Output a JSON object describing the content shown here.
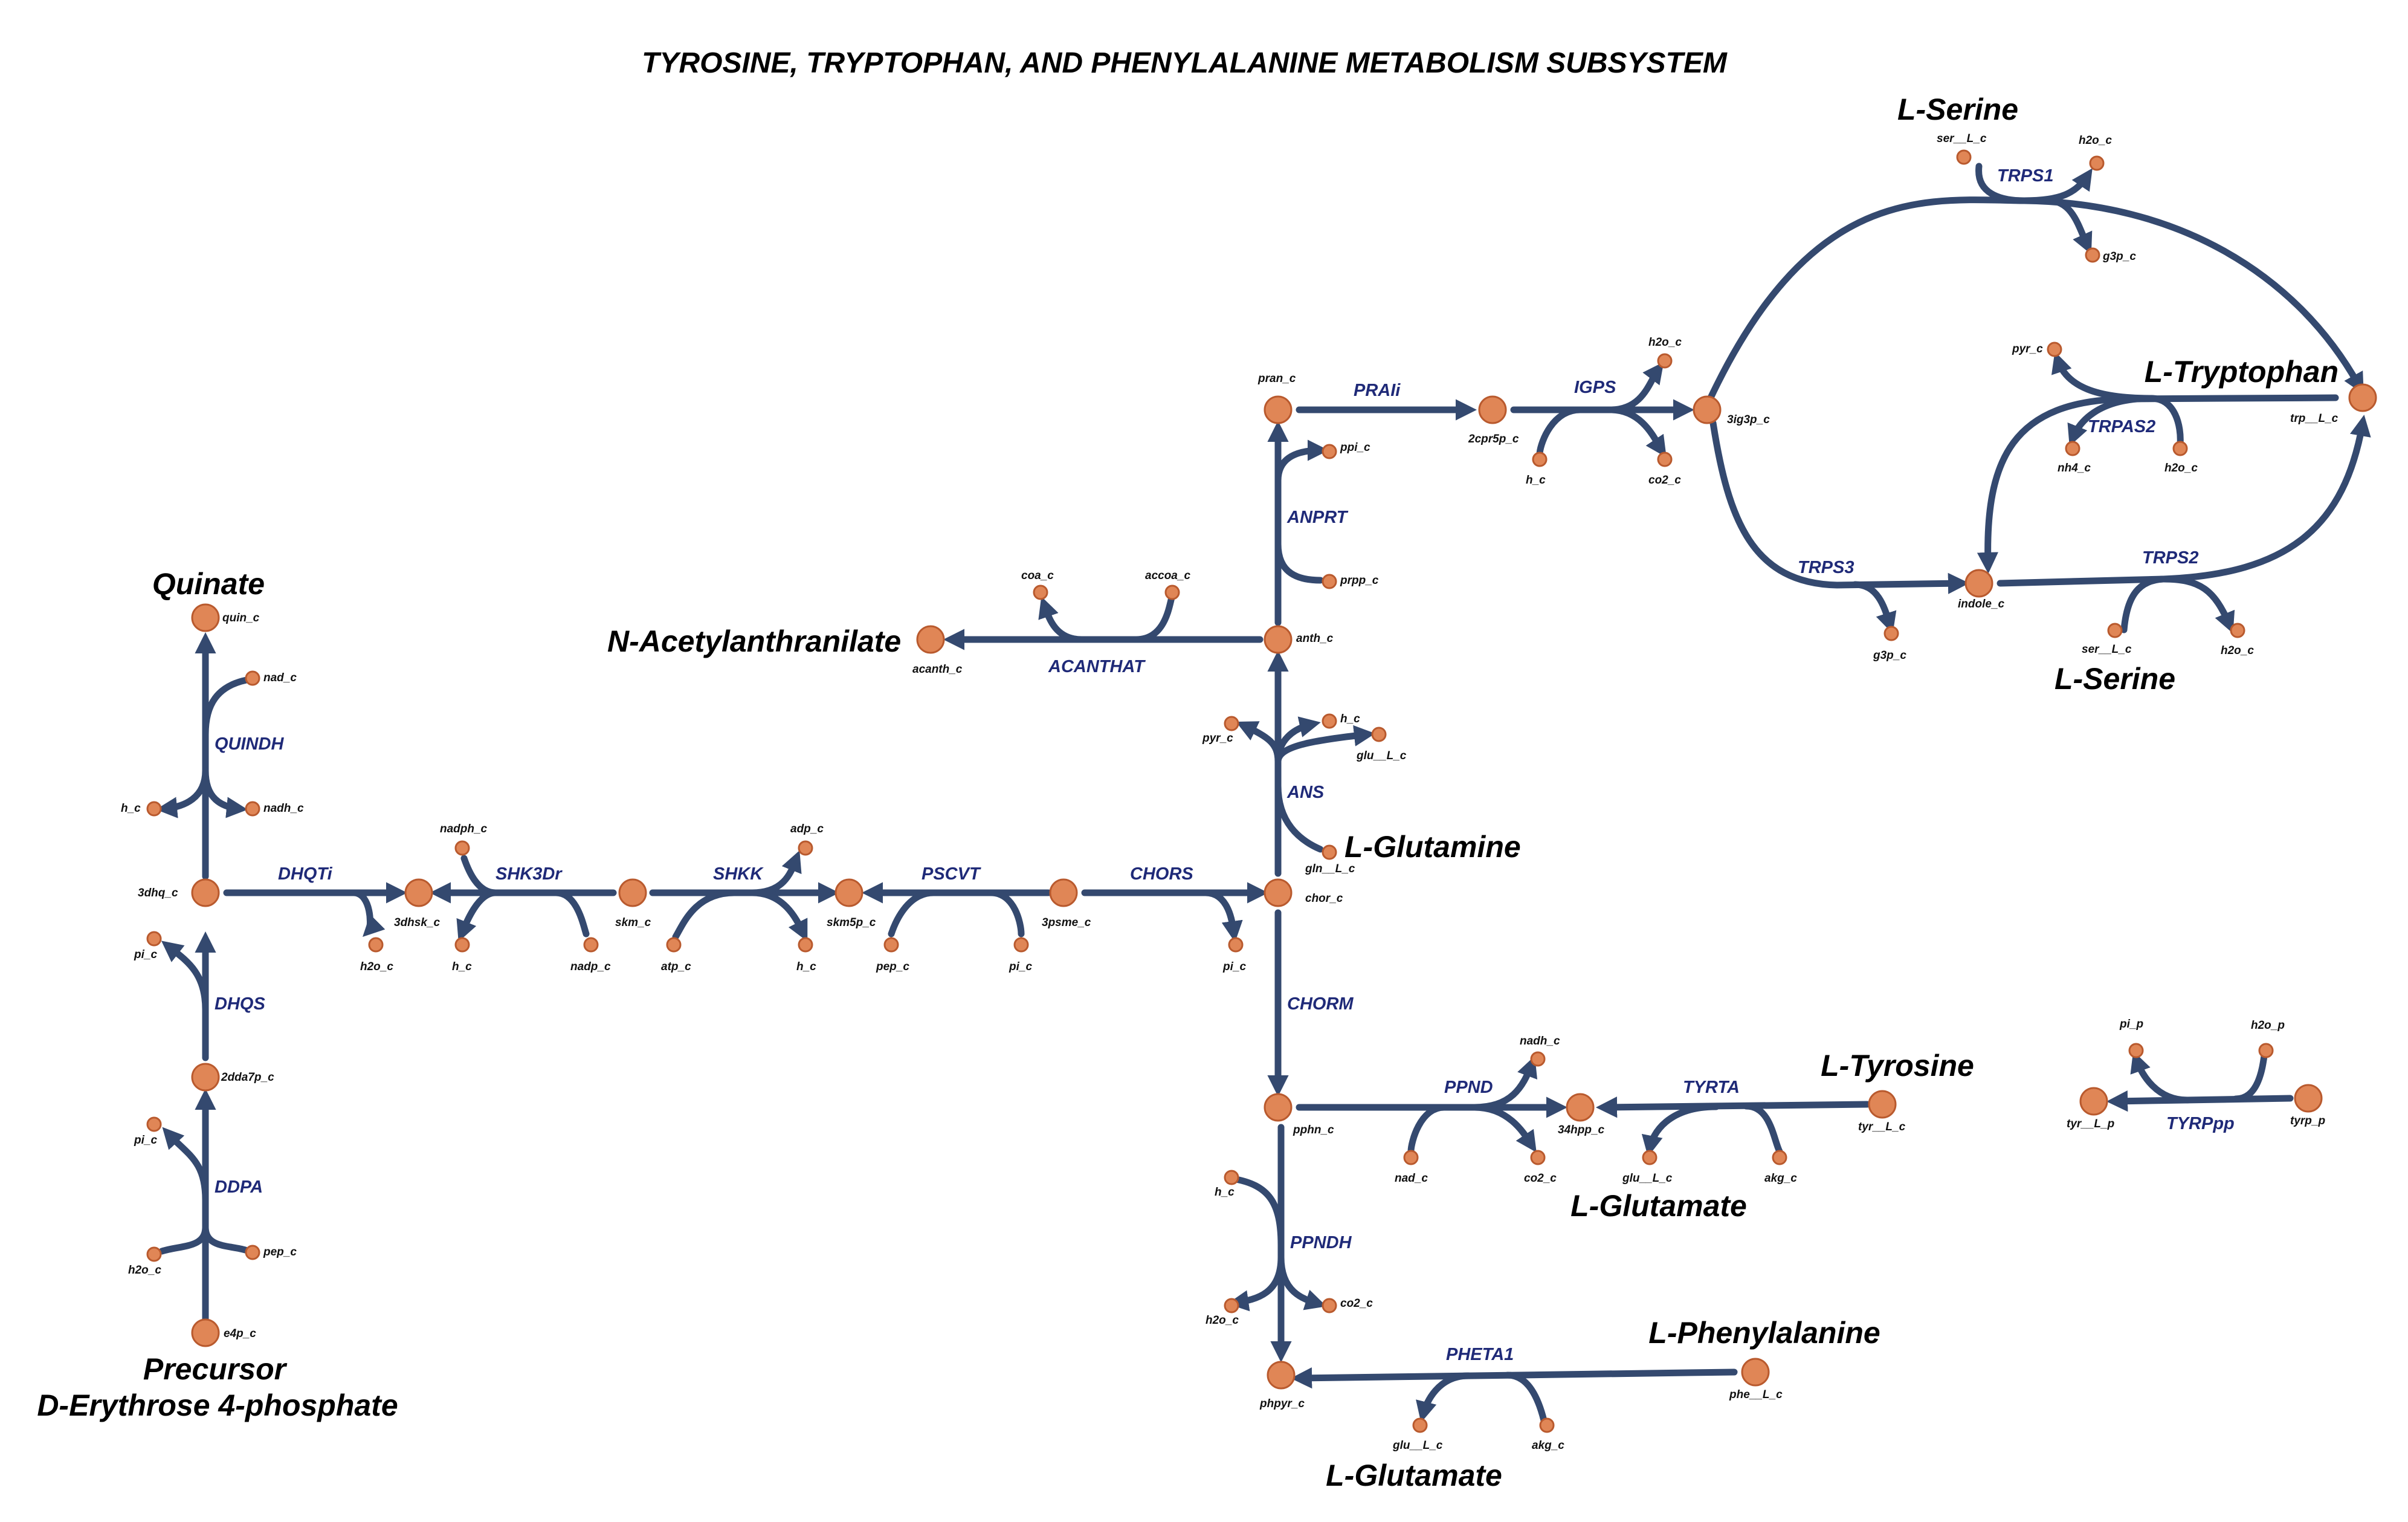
{
  "title": "TYROSINE, TRYPTOPHAN, AND PHENYLALANINE METABOLISM SUBSYSTEM",
  "colors": {
    "edge": "#34496f",
    "node_fill": "#e08656",
    "node_stroke": "#b95a2e",
    "reaction_label": "#1f2a78"
  },
  "group_labels": {
    "quinate": "Quinate",
    "precursor": "Precursor",
    "precursor_name": "D-Erythrose 4-phosphate",
    "n_acetylanthranilate": "N-Acetylanthranilate",
    "l_glutamine": "L-Glutamine",
    "l_serine_top": "L-Serine",
    "l_tryptophan": "L-Tryptophan",
    "l_serine_bottom": "L-Serine",
    "l_tyrosine": "L-Tyrosine",
    "l_glutamate_tyr": "L-Glutamate",
    "l_phenylalanine": "L-Phenylalanine",
    "l_glutamate_phe": "L-Glutamate"
  },
  "reactions": {
    "quindh": "QUINDH",
    "dhqti": "DHQTi",
    "dhqs": "DHQS",
    "ddpa": "DDPA",
    "shk3dr": "SHK3Dr",
    "shkk": "SHKK",
    "pscvt": "PSCVT",
    "chors": "CHORS",
    "ans": "ANS",
    "anprt": "ANPRT",
    "acanthat": "ACANTHAT",
    "prai": "PRAIi",
    "igps": "IGPS",
    "trps1": "TRPS1",
    "trpas2": "TRPAS2",
    "trps3": "TRPS3",
    "trps2": "TRPS2",
    "chorm": "CHORM",
    "ppnd": "PPND",
    "tyrta": "TYRTA",
    "ppndh": "PPNDH",
    "pheta1": "PHETA1",
    "tyrpp": "TYRPpp"
  },
  "metabolites": {
    "quin_c": "quin_c",
    "nad_c_quindh": "nad_c",
    "nadh_c_quindh": "nadh_c",
    "h_c_quindh": "h_c",
    "dhq_c": "3dhq_c",
    "pi_c_dhqs": "pi_c",
    "dda7p_c": "2dda7p_c",
    "pi_c_ddpa": "pi_c",
    "h2o_c_ddpa": "h2o_c",
    "pep_c_ddpa": "pep_c",
    "e4p_c": "e4p_c",
    "dhsk_c": "3dhsk_c",
    "h2o_c_dhqti": "h2o_c",
    "nadph_c": "nadph_c",
    "h_c_shk3dr": "h_c",
    "nadp_c": "nadp_c",
    "skm_c": "skm_c",
    "atp_c": "atp_c",
    "adp_c": "adp_c",
    "h_c_shkk": "h_c",
    "skm5p_c": "skm5p_c",
    "pep_c_pscvt": "pep_c",
    "pi_c_pscvt": "pi_c",
    "psme_c": "3psme_c",
    "chor_c": "chor_c",
    "pi_c_chors": "pi_c",
    "gln_c": "gln__L_c",
    "pyr_c_ans": "pyr_c",
    "h_c_ans": "h_c",
    "glu_c_ans": "glu__L_c",
    "anth_c": "anth_c",
    "ppi_c": "ppi_c",
    "prpp_c": "prpp_c",
    "acanth_c": "acanth_c",
    "coa_c": "coa_c",
    "accoa_c": "accoa_c",
    "pran_c": "pran_c",
    "cpr5p_c": "2cpr5p_c",
    "h_c_igps": "h_c",
    "h2o_c_igps": "h2o_c",
    "co2_c_igps": "co2_c",
    "ig3p_c": "3ig3p_c",
    "ser_c_trps1": "ser__L_c",
    "h2o_c_trps1": "h2o_c",
    "g3p_c_trps1": "g3p_c",
    "pyr_c_trpas2": "pyr_c",
    "nh4_c": "nh4_c",
    "h2o_c_trpas2": "h2o_c",
    "trp_c": "trp__L_c",
    "indole_c": "indole_c",
    "g3p_c_trps3": "g3p_c",
    "ser_c_trps2": "ser__L_c",
    "h2o_c_trps2": "h2o_c",
    "pphn_c": "pphn_c",
    "nad_c_ppnd": "nad_c",
    "nadh_c_ppnd": "nadh_c",
    "co2_c_ppnd": "co2_c",
    "hpp_c": "34hpp_c",
    "glu_c_tyrta": "glu__L_c",
    "akg_c_tyrta": "akg_c",
    "tyr_c": "tyr__L_c",
    "h_c_ppndh": "h_c",
    "h2o_c_ppndh": "h2o_c",
    "co2_c_ppndh": "co2_c",
    "phpyr_c": "phpyr_c",
    "glu_c_pheta1": "glu__L_c",
    "akg_c_pheta1": "akg_c",
    "phe_c": "phe__L_c",
    "pi_p": "pi_p",
    "h2o_p": "h2o_p",
    "tyr_p": "tyr__L_p",
    "tyrp_p": "tyrp_p"
  }
}
